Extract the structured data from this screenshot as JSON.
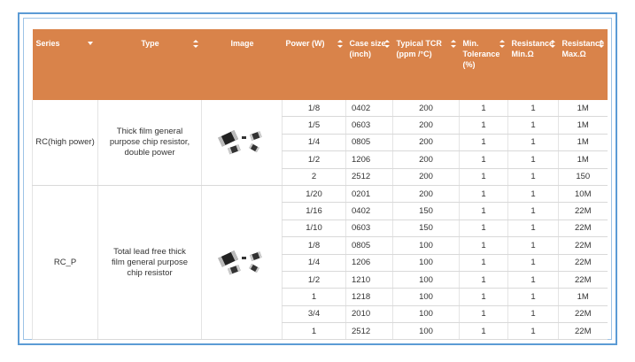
{
  "table": {
    "headers": [
      "Series",
      "Type",
      "Image",
      "Power (W)",
      "Case size (inch)",
      "Typical TCR (ppm /°C)",
      "Min. Tolerance (%)",
      "Resistance Min.Ω",
      "Resistance Max.Ω"
    ],
    "groups": [
      {
        "series": "RC(high power)",
        "type": "Thick film general purpose chip resistor, double power",
        "rows": [
          [
            "1/8",
            "0402",
            "200",
            "1",
            "1",
            "1M"
          ],
          [
            "1/5",
            "0603",
            "200",
            "1",
            "1",
            "1M"
          ],
          [
            "1/4",
            "0805",
            "200",
            "1",
            "1",
            "1M"
          ],
          [
            "1/2",
            "1206",
            "200",
            "1",
            "1",
            "1M"
          ],
          [
            "2",
            "2512",
            "200",
            "1",
            "1",
            "150"
          ]
        ]
      },
      {
        "series": "RC_P",
        "type": "Total lead free thick film general purpose chip resistor",
        "rows": [
          [
            "1/20",
            "0201",
            "200",
            "1",
            "1",
            "10M"
          ],
          [
            "1/16",
            "0402",
            "150",
            "1",
            "1",
            "22M"
          ],
          [
            "1/10",
            "0603",
            "150",
            "1",
            "1",
            "22M"
          ],
          [
            "1/8",
            "0805",
            "100",
            "1",
            "1",
            "22M"
          ],
          [
            "1/4",
            "1206",
            "100",
            "1",
            "1",
            "22M"
          ],
          [
            "1/2",
            "1210",
            "100",
            "1",
            "1",
            "22M"
          ],
          [
            "1",
            "1218",
            "100",
            "1",
            "1",
            "1M"
          ],
          [
            "3/4",
            "2010",
            "100",
            "1",
            "1",
            "22M"
          ],
          [
            "1",
            "2512",
            "100",
            "1",
            "1",
            "22M"
          ]
        ]
      }
    ]
  }
}
